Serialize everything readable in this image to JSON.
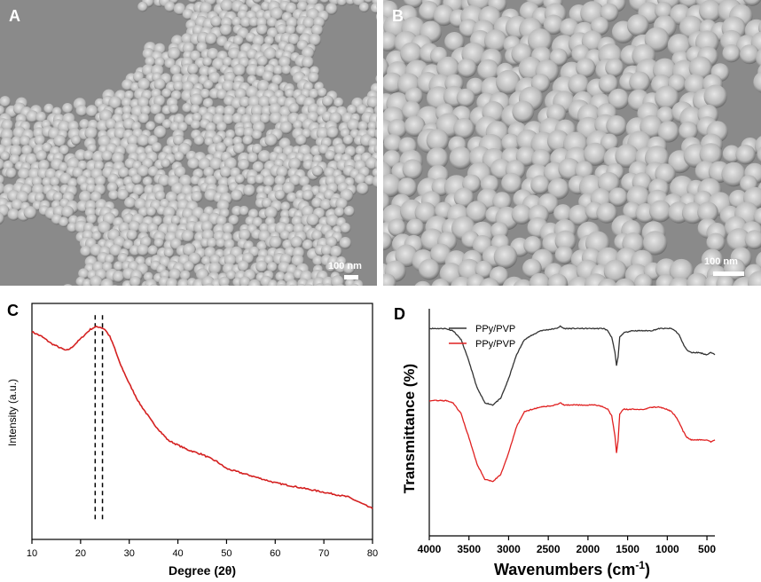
{
  "panel_a": {
    "letter": "A",
    "scale_label": "100 nm"
  },
  "panel_b": {
    "letter": "B",
    "scale_label": "100 nm"
  },
  "panel_c": {
    "letter": "C"
  },
  "panel_d": {
    "letter": "D"
  },
  "chart_data": [
    {
      "type": "line",
      "title": "",
      "xlabel": "Degree (2θ)",
      "ylabel": "Intensity (a.u.)",
      "xlim": [
        10,
        80
      ],
      "xticks": [
        10,
        20,
        30,
        40,
        50,
        60,
        70,
        80
      ],
      "yticks_shown": false,
      "reference_lines_x": [
        23.0,
        24.5
      ],
      "series": [
        {
          "color": "#d42020",
          "x": [
            10,
            12,
            14,
            16,
            17,
            18,
            20,
            22,
            23,
            24,
            25,
            26,
            27,
            28,
            30,
            32,
            35,
            38,
            40,
            42,
            45,
            48,
            50,
            55,
            60,
            65,
            70,
            75,
            78,
            80
          ],
          "y": [
            0.88,
            0.86,
            0.83,
            0.81,
            0.8,
            0.81,
            0.85,
            0.89,
            0.9,
            0.9,
            0.89,
            0.86,
            0.81,
            0.75,
            0.66,
            0.58,
            0.49,
            0.42,
            0.4,
            0.38,
            0.36,
            0.33,
            0.3,
            0.27,
            0.24,
            0.22,
            0.2,
            0.18,
            0.15,
            0.13
          ]
        }
      ]
    },
    {
      "type": "line",
      "title": "",
      "xlabel": "Wavenumbers (cm-1)",
      "ylabel": "Transmittance (%)",
      "xlim": [
        4000,
        400
      ],
      "xticks": [
        4000,
        3500,
        3000,
        2500,
        2000,
        1500,
        1000,
        500
      ],
      "yticks_shown": false,
      "legend_position": "top-left",
      "series": [
        {
          "name": "PPy/PVP",
          "color": "#333333",
          "x": [
            4000,
            3800,
            3700,
            3600,
            3500,
            3400,
            3300,
            3200,
            3100,
            3000,
            2900,
            2800,
            2600,
            2400,
            2350,
            2300,
            2200,
            2000,
            1900,
            1800,
            1750,
            1700,
            1660,
            1640,
            1620,
            1600,
            1550,
            1450,
            1300,
            1200,
            1100,
            1000,
            950,
            900,
            850,
            800,
            750,
            700,
            600,
            500,
            450,
            400
          ],
          "y": [
            0.95,
            0.95,
            0.94,
            0.9,
            0.8,
            0.68,
            0.61,
            0.6,
            0.63,
            0.72,
            0.83,
            0.9,
            0.94,
            0.95,
            0.96,
            0.95,
            0.95,
            0.95,
            0.95,
            0.95,
            0.94,
            0.91,
            0.84,
            0.78,
            0.82,
            0.91,
            0.93,
            0.94,
            0.94,
            0.94,
            0.95,
            0.95,
            0.95,
            0.94,
            0.92,
            0.88,
            0.85,
            0.84,
            0.84,
            0.83,
            0.84,
            0.83
          ]
        },
        {
          "name": "PPy/PVP",
          "color": "#e02020",
          "x": [
            4000,
            3800,
            3700,
            3600,
            3500,
            3400,
            3300,
            3200,
            3100,
            3000,
            2900,
            2800,
            2600,
            2400,
            2350,
            2300,
            2200,
            2000,
            1900,
            1800,
            1750,
            1700,
            1660,
            1640,
            1620,
            1600,
            1550,
            1450,
            1300,
            1200,
            1100,
            1000,
            950,
            900,
            850,
            800,
            750,
            700,
            600,
            500,
            450,
            400
          ],
          "y": [
            0.62,
            0.62,
            0.61,
            0.56,
            0.45,
            0.33,
            0.26,
            0.25,
            0.28,
            0.38,
            0.5,
            0.57,
            0.59,
            0.6,
            0.61,
            0.6,
            0.6,
            0.6,
            0.6,
            0.59,
            0.58,
            0.55,
            0.46,
            0.38,
            0.44,
            0.56,
            0.58,
            0.58,
            0.58,
            0.59,
            0.59,
            0.58,
            0.57,
            0.55,
            0.52,
            0.48,
            0.45,
            0.44,
            0.44,
            0.44,
            0.43,
            0.44
          ]
        }
      ]
    }
  ]
}
